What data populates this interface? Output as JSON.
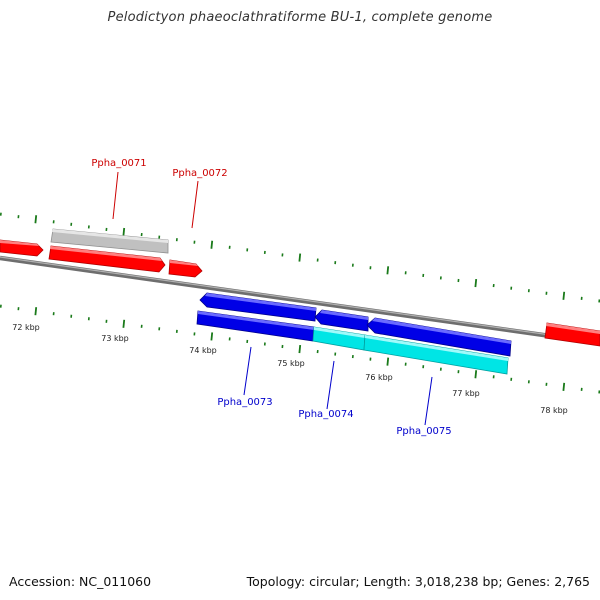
{
  "title": "Pelodictyon phaeoclathratiforme BU-1, complete genome",
  "footer": {
    "accession": "Accession: NC_011060",
    "topology": "Topology: circular; Length: 3,018,238 bp; Genes: 2,765"
  },
  "colors": {
    "backbone": "#808080",
    "tick": "#1a7a1a",
    "forward_gene": "#ff0000",
    "forward_gene_pseudo": "#c0c0c0",
    "reverse_gene": "#0000e6",
    "reverse_gene_rna": "#00e5e5",
    "label_forward": "#cc0000",
    "label_reverse": "#0000cc"
  },
  "scale": {
    "unit": "kbp",
    "labels": [
      "72 kbp",
      "73 kbp",
      "74 kbp",
      "75 kbp",
      "76 kbp",
      "77 kbp",
      "78 kbp"
    ]
  },
  "genes": [
    {
      "id": "Ppha_0071",
      "strand": "+",
      "row": "outer",
      "color": "#c0c0c0",
      "labeled": true,
      "label": "Ppha_0071"
    },
    {
      "id": "Ppha_0071-cds",
      "strand": "+",
      "row": "inner",
      "color": "#ff0000",
      "labeled": false
    },
    {
      "id": "Ppha_0072",
      "strand": "+",
      "row": "inner",
      "color": "#ff0000",
      "labeled": true,
      "label": "Ppha_0072"
    },
    {
      "id": "Ppha_0073",
      "strand": "-",
      "row": "inner",
      "color": "#0000e6",
      "labeled": true,
      "label": "Ppha_0073"
    },
    {
      "id": "Ppha_0074",
      "strand": "-",
      "row": "inner",
      "color": "#0000e6",
      "labeled": true,
      "label": "Ppha_0074"
    },
    {
      "id": "Ppha_0075",
      "strand": "-",
      "row": "inner",
      "color": "#0000e6",
      "labeled": true,
      "label": "Ppha_0075"
    }
  ]
}
